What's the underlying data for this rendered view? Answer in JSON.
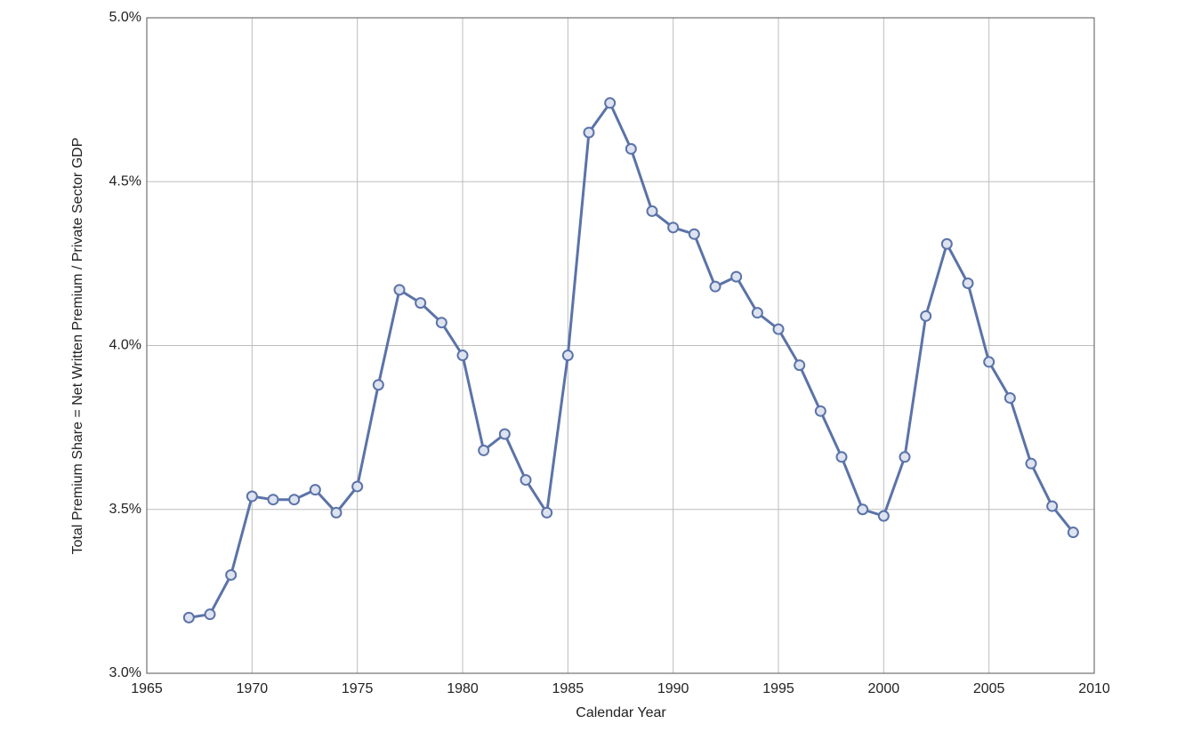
{
  "chart_data": {
    "type": "line",
    "xlabel": "Calendar Year",
    "ylabel": "Total Premium Share = Net Written Premium / Private Sector GDP",
    "x": [
      1967,
      1968,
      1969,
      1970,
      1971,
      1972,
      1973,
      1974,
      1975,
      1976,
      1977,
      1978,
      1979,
      1980,
      1981,
      1982,
      1983,
      1984,
      1985,
      1986,
      1987,
      1988,
      1989,
      1990,
      1991,
      1992,
      1993,
      1994,
      1995,
      1996,
      1997,
      1998,
      1999,
      2000,
      2001,
      2002,
      2003,
      2004,
      2005,
      2006,
      2007,
      2008,
      2009
    ],
    "series": [
      {
        "color": "#5b73a8",
        "values": [
          3.17,
          3.18,
          3.3,
          3.54,
          3.53,
          3.53,
          3.56,
          3.49,
          3.57,
          3.88,
          4.17,
          4.13,
          4.07,
          3.97,
          3.68,
          3.73,
          3.59,
          3.49,
          3.97,
          4.65,
          4.74,
          4.6,
          4.41,
          4.36,
          4.34,
          4.18,
          4.21,
          4.1,
          4.05,
          3.94,
          3.8,
          3.66,
          3.5,
          3.48,
          3.66,
          4.09,
          4.31,
          4.19,
          3.95,
          3.84,
          3.64,
          3.51,
          3.43
        ]
      }
    ],
    "xlim": [
      1965,
      2010
    ],
    "xticks": [
      1965,
      1970,
      1975,
      1980,
      1985,
      1990,
      1995,
      2000,
      2005,
      2010
    ],
    "ylim": [
      3.0,
      5.0
    ],
    "yticks": [
      {
        "value": 3.0,
        "label": "3.0%"
      },
      {
        "value": 3.5,
        "label": "3.5%"
      },
      {
        "value": 4.0,
        "label": "4.0%"
      },
      {
        "value": 4.5,
        "label": "4.5%"
      },
      {
        "value": 5.0,
        "label": "5.0%"
      }
    ],
    "grid": true
  }
}
